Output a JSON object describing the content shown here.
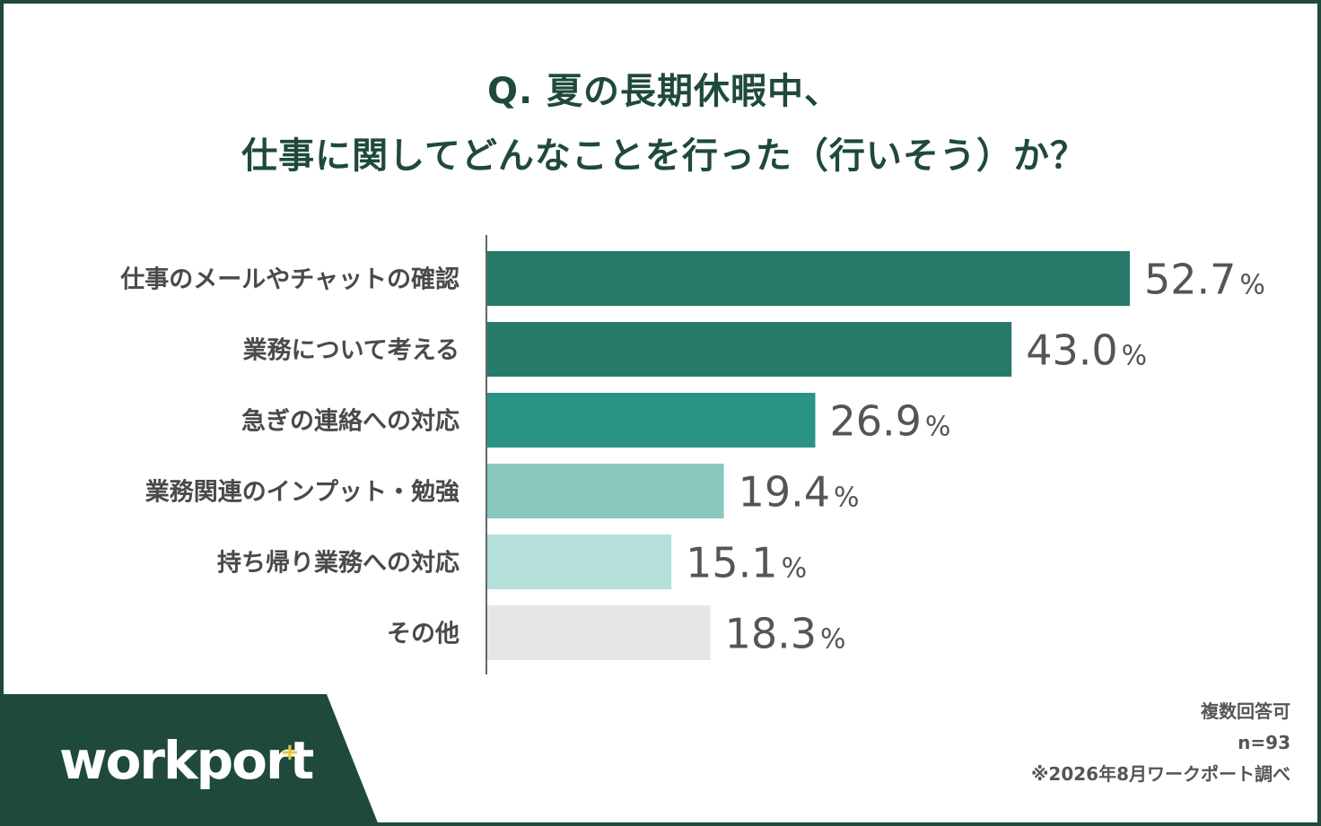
{
  "title": {
    "line1": "Q. 夏の長期休暇中、",
    "line2": "仕事に関してどんなことを行った（行いそう）か？"
  },
  "chart_data": {
    "type": "bar",
    "orientation": "horizontal",
    "categories": [
      "仕事のメールやチャットの確認",
      "業務について考える",
      "急ぎの連絡への対応",
      "業務関連のインプット・勉強",
      "持ち帰り業務への対応",
      "その他"
    ],
    "values": [
      52.7,
      43.0,
      26.9,
      19.4,
      15.1,
      18.3
    ],
    "value_labels": [
      "52.7",
      "43.0",
      "26.9",
      "19.4",
      "15.1",
      "18.3"
    ],
    "unit": "%",
    "bar_colors": [
      "#27796a",
      "#27796a",
      "#2a9484",
      "#88c8bf",
      "#b5e0da",
      "#e6e6e6"
    ],
    "xlim": [
      0,
      60
    ],
    "grid": false,
    "legend": "none"
  },
  "footer": {
    "note1": "複数回答可",
    "note2": "n=93",
    "note3": "※2026年8月ワークポート調べ"
  },
  "logo": {
    "text": "workport",
    "mark": "+"
  },
  "colors": {
    "brand": "#1f4a3b",
    "accent": "#e8c83a"
  }
}
